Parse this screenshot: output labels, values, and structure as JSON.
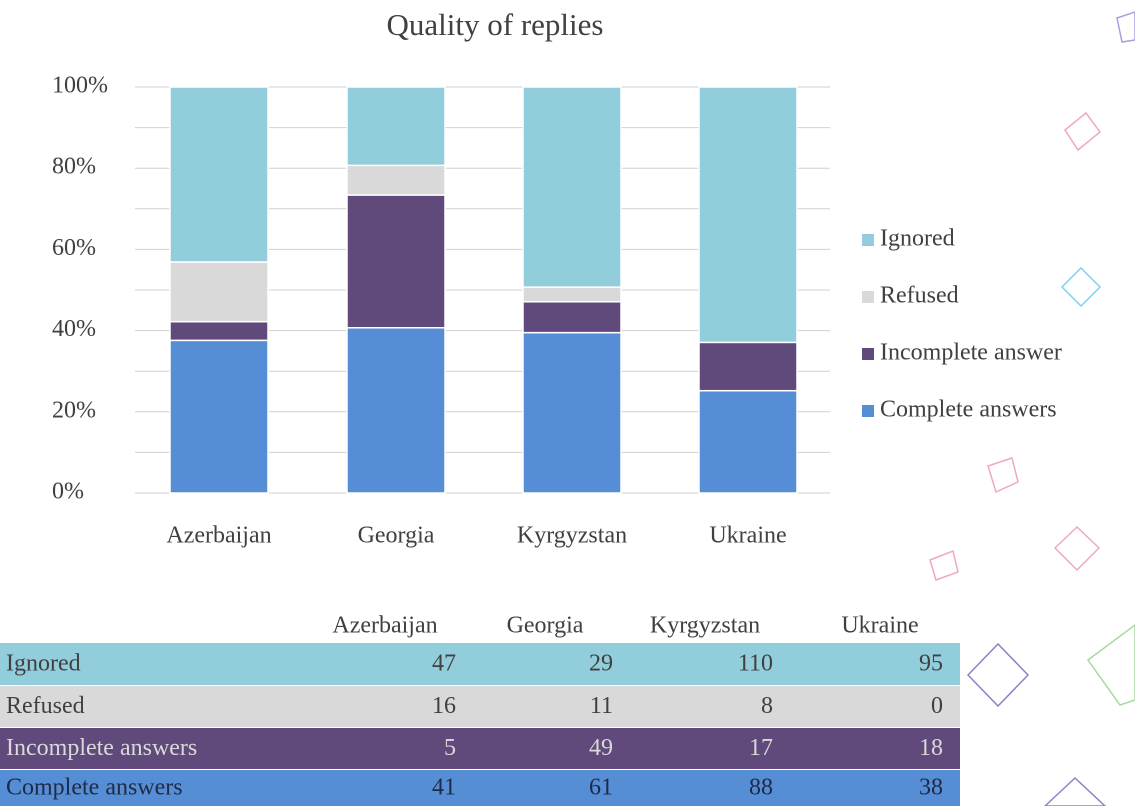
{
  "chart_data": {
    "type": "stacked_bar",
    "title": "Quality of replies",
    "categories": [
      "Azerbaijan",
      "Georgia",
      "Kyrgyzstan",
      "Ukraine"
    ],
    "series": [
      {
        "name": "Complete answers",
        "color": "#558ed5",
        "values": [
          37.6,
          40.7,
          39.5,
          25.2
        ]
      },
      {
        "name": "Incomplete answer",
        "color": "#604a7b",
        "values": [
          4.6,
          32.7,
          7.6,
          11.9
        ]
      },
      {
        "name": "Refused",
        "color": "#d9d9d9",
        "values": [
          14.7,
          7.3,
          3.6,
          0
        ]
      },
      {
        "name": "Ignored",
        "color": "#92cddc",
        "values": [
          43.1,
          19.3,
          49.3,
          62.9
        ]
      }
    ],
    "ylim": [
      0,
      100
    ],
    "yticks": [
      {
        "value": 0,
        "label": "0%"
      },
      {
        "value": 20,
        "label": "20%"
      },
      {
        "value": 40,
        "label": "40%"
      },
      {
        "value": 60,
        "label": "60%"
      },
      {
        "value": 80,
        "label": "80%"
      },
      {
        "value": 100,
        "label": "100%"
      }
    ],
    "yminor": [
      10,
      30,
      50,
      70,
      90
    ],
    "grid": true,
    "legend": "right"
  },
  "table": {
    "header": [
      "Azerbaijan",
      "Georgia",
      "Kyrgyzstan",
      "Ukraine"
    ],
    "rows": [
      {
        "color": "#92cddc",
        "text_color": "#404040",
        "cells": [
          "Ignored",
          47,
          29,
          110,
          95
        ]
      },
      {
        "color": "#d9d9d9",
        "text_color": "#404040",
        "cells": [
          "Refused",
          16,
          11,
          8,
          0
        ]
      },
      {
        "color": "#604a7b",
        "text_color": "#d9d9d9",
        "cells": [
          "Incomplete answers",
          5,
          49,
          17,
          18
        ]
      },
      {
        "color": "#558ed5",
        "text_color": "#1f2a44",
        "cells": [
          "Complete answers",
          41,
          61,
          88,
          38
        ]
      }
    ]
  }
}
